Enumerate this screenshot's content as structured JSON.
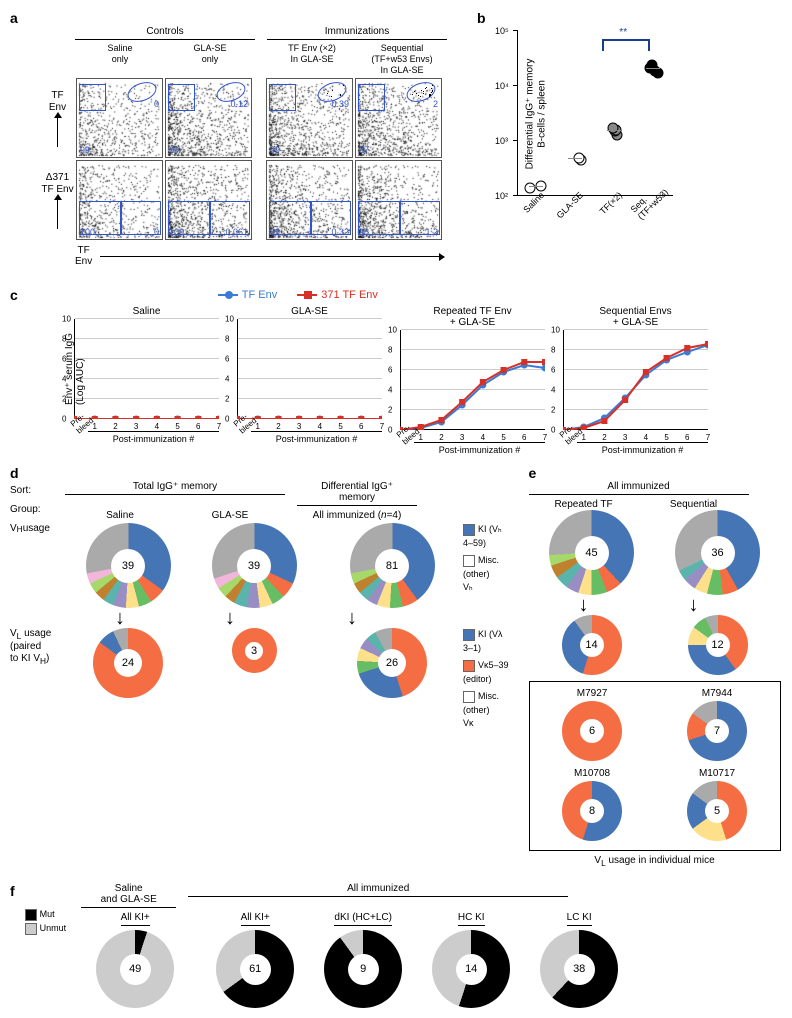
{
  "colors": {
    "blue": "#4575b4",
    "orange": "#f46d43",
    "gray": "#aaaaaa",
    "darkgray": "#777777",
    "white": "#ffffff",
    "line_blue": "#3a7bd5",
    "line_red": "#d73027",
    "sig_blue": "#1a3d8a",
    "green": "#66bd63",
    "yellow": "#fee08b",
    "teal": "#5ab4ac",
    "purple": "#998ec3",
    "lime": "#a6d96a",
    "pink": "#f1b6da",
    "brown": "#bf812d",
    "black": "#000000"
  },
  "panelA": {
    "controls_label": "Controls",
    "immunizations_label": "Immunizations",
    "columns": [
      {
        "top": "Saline",
        "bottom": "only"
      },
      {
        "top": "GLA-SE",
        "bottom": "only"
      },
      {
        "top": "TF Env (×2)",
        "bottom": "In GLA-SE"
      },
      {
        "top": "Sequential",
        "mid": "(TF+w53 Envs)",
        "bottom": "In GLA-SE"
      }
    ],
    "row_labels": [
      {
        "line1": "TF",
        "line2": "Env"
      },
      {
        "line1": "Δ371",
        "line2": "TF Env"
      }
    ],
    "x_label": "TF\nEnv",
    "plots_top": [
      {
        "left_pct": "99",
        "right_pct": "0",
        "density": 600
      },
      {
        "left_pct": "99",
        "right_pct": "0.12",
        "density": 900
      },
      {
        "left_pct": "99",
        "right_pct": "0.39",
        "density": 900,
        "oval_dots": 6
      },
      {
        "left_pct": "97",
        "right_pct": "2",
        "density": 900,
        "oval_dots": 20
      }
    ],
    "plots_bottom": [
      {
        "left_pct": "100",
        "right_pct": "0",
        "density": 600
      },
      {
        "left_pct": "100",
        "right_pct": "0.061",
        "density": 900
      },
      {
        "left_pct": "99",
        "right_pct": "0.32",
        "density": 900
      },
      {
        "left_pct": "98",
        "right_pct": "1.2",
        "density": 900
      }
    ],
    "x_ticks": [
      "0",
      "10²",
      "10³",
      "10⁴",
      "10⁵"
    ]
  },
  "panelB": {
    "y_label": "Differential IgG⁺ memory\nB-cells / spleen",
    "y_ticks": [
      "10²",
      "10³",
      "10⁴",
      "10⁵"
    ],
    "significance": "**",
    "groups": [
      {
        "label": "Saline",
        "color": "#ffffff",
        "points": [
          140,
          150
        ],
        "median": 145
      },
      {
        "label": "GLA-SE",
        "color": "#ffffff",
        "points": [
          450,
          500
        ],
        "median": 475
      },
      {
        "label": "TF(×2)",
        "color": "#888888",
        "points": [
          1300,
          1500,
          1600,
          1700
        ],
        "median": 1525
      },
      {
        "label": "Seq.\n(TF+w53)",
        "color": "#000000",
        "points": [
          17000,
          19000,
          21000,
          24000
        ],
        "median": 20000
      }
    ]
  },
  "panelC": {
    "legend": [
      {
        "label": "TF Env",
        "color": "#3a7bd5",
        "marker": "circle"
      },
      {
        "label": "371 TF Env",
        "color": "#d73027",
        "marker": "square"
      }
    ],
    "y_label": "Env⁺ serum IgG\n(Log AUC)",
    "y_ticks": [
      0,
      2,
      4,
      6,
      8,
      10
    ],
    "x_ticks": [
      "1",
      "2",
      "3",
      "4",
      "5",
      "6",
      "7"
    ],
    "x_label": "Post-immunization #",
    "prebleed": "Pre-\nbleed",
    "charts": [
      {
        "title": "Saline",
        "blue": [
          0,
          0,
          0,
          0,
          0,
          0,
          0,
          0
        ],
        "red": [
          0,
          0,
          0,
          0,
          0,
          0,
          0,
          0
        ]
      },
      {
        "title": "GLA-SE",
        "blue": [
          0,
          0,
          0,
          0,
          0,
          0,
          0,
          0
        ],
        "red": [
          0,
          0,
          0,
          0,
          0,
          0,
          0,
          0
        ]
      },
      {
        "title": "Repeated TF Env\n+ GLA-SE",
        "blue": [
          0,
          0.2,
          0.8,
          2.5,
          4.5,
          5.8,
          6.5,
          6.2
        ],
        "red": [
          0,
          0.3,
          1.0,
          2.8,
          4.8,
          6.0,
          6.8,
          6.8
        ]
      },
      {
        "title": "Sequential Envs\n+ GLA-SE",
        "blue": [
          0,
          0.3,
          1.2,
          3.2,
          5.5,
          7.0,
          7.8,
          8.5
        ],
        "red": [
          0,
          0.2,
          0.9,
          3.0,
          5.8,
          7.2,
          8.2,
          8.6
        ]
      }
    ]
  },
  "panelD": {
    "sort_label": "Sort:",
    "group_label": "Group:",
    "vh_label": "Vₕ usage",
    "vl_label": "V_L usage\n(paired\nto KI Vₕ)",
    "headers": {
      "total": "Total IgG⁺ memory",
      "diff": "Differential IgG⁺\nmemory"
    },
    "subheaders": [
      "Saline",
      "GLA-SE",
      "All immunized (n=4)"
    ],
    "legend_vh": [
      {
        "color": "#4575b4",
        "label": "KI (Vₕ\n4–59)"
      },
      {
        "color": "#ffffff",
        "label": "Misc.\n(other)\nVₕ"
      }
    ],
    "legend_vl": [
      {
        "color": "#4575b4",
        "label": "KI (Vλ\n3–1)"
      },
      {
        "color": "#f46d43",
        "label": "Vκ5–39\n(editor)"
      },
      {
        "color": "#ffffff",
        "label": "Misc.\n(other)\nVκ"
      }
    ],
    "vh_donuts": [
      {
        "n": 39,
        "slices": [
          {
            "c": "#4575b4",
            "p": 35
          },
          {
            "c": "#f46d43",
            "p": 6
          },
          {
            "c": "#66bd63",
            "p": 5
          },
          {
            "c": "#fee08b",
            "p": 5
          },
          {
            "c": "#998ec3",
            "p": 5
          },
          {
            "c": "#5ab4ac",
            "p": 4
          },
          {
            "c": "#bf812d",
            "p": 4
          },
          {
            "c": "#a6d96a",
            "p": 4
          },
          {
            "c": "#f1b6da",
            "p": 4
          },
          {
            "c": "#aaaaaa",
            "p": 28
          }
        ]
      },
      {
        "n": 39,
        "slices": [
          {
            "c": "#4575b4",
            "p": 32
          },
          {
            "c": "#f46d43",
            "p": 6
          },
          {
            "c": "#66bd63",
            "p": 5
          },
          {
            "c": "#fee08b",
            "p": 5
          },
          {
            "c": "#998ec3",
            "p": 5
          },
          {
            "c": "#5ab4ac",
            "p": 5
          },
          {
            "c": "#bf812d",
            "p": 4
          },
          {
            "c": "#a6d96a",
            "p": 4
          },
          {
            "c": "#f1b6da",
            "p": 4
          },
          {
            "c": "#aaaaaa",
            "p": 30
          }
        ]
      },
      {
        "n": 81,
        "slices": [
          {
            "c": "#4575b4",
            "p": 40
          },
          {
            "c": "#f46d43",
            "p": 6
          },
          {
            "c": "#66bd63",
            "p": 5
          },
          {
            "c": "#fee08b",
            "p": 5
          },
          {
            "c": "#998ec3",
            "p": 4
          },
          {
            "c": "#5ab4ac",
            "p": 4
          },
          {
            "c": "#bf812d",
            "p": 4
          },
          {
            "c": "#a6d96a",
            "p": 4
          },
          {
            "c": "#aaaaaa",
            "p": 28
          }
        ]
      }
    ],
    "vl_donuts": [
      {
        "n": 24,
        "slices": [
          {
            "c": "#f46d43",
            "p": 85
          },
          {
            "c": "#4575b4",
            "p": 8
          },
          {
            "c": "#aaaaaa",
            "p": 7
          }
        ]
      },
      {
        "n": 3,
        "slices": [
          {
            "c": "#f46d43",
            "p": 100
          }
        ]
      },
      {
        "n": 26,
        "slices": [
          {
            "c": "#f46d43",
            "p": 45
          },
          {
            "c": "#4575b4",
            "p": 25
          },
          {
            "c": "#66bd63",
            "p": 6
          },
          {
            "c": "#fee08b",
            "p": 6
          },
          {
            "c": "#998ec3",
            "p": 5
          },
          {
            "c": "#5ab4ac",
            "p": 5
          },
          {
            "c": "#aaaaaa",
            "p": 8
          }
        ]
      }
    ]
  },
  "panelE": {
    "header": "All immunized",
    "subheaders": [
      "Repeated TF",
      "Sequential"
    ],
    "vh_donuts": [
      {
        "n": 45,
        "slices": [
          {
            "c": "#4575b4",
            "p": 38
          },
          {
            "c": "#f46d43",
            "p": 6
          },
          {
            "c": "#66bd63",
            "p": 6
          },
          {
            "c": "#fee08b",
            "p": 5
          },
          {
            "c": "#998ec3",
            "p": 5
          },
          {
            "c": "#5ab4ac",
            "p": 5
          },
          {
            "c": "#bf812d",
            "p": 5
          },
          {
            "c": "#a6d96a",
            "p": 4
          },
          {
            "c": "#aaaaaa",
            "p": 26
          }
        ]
      },
      {
        "n": 36,
        "slices": [
          {
            "c": "#4575b4",
            "p": 42
          },
          {
            "c": "#f46d43",
            "p": 6
          },
          {
            "c": "#66bd63",
            "p": 6
          },
          {
            "c": "#fee08b",
            "p": 5
          },
          {
            "c": "#998ec3",
            "p": 5
          },
          {
            "c": "#5ab4ac",
            "p": 4
          },
          {
            "c": "#aaaaaa",
            "p": 32
          }
        ]
      }
    ],
    "vl_donuts": [
      {
        "n": 14,
        "slices": [
          {
            "c": "#f46d43",
            "p": 55
          },
          {
            "c": "#4575b4",
            "p": 35
          },
          {
            "c": "#aaaaaa",
            "p": 10
          }
        ]
      },
      {
        "n": 12,
        "slices": [
          {
            "c": "#f46d43",
            "p": 40
          },
          {
            "c": "#4575b4",
            "p": 35
          },
          {
            "c": "#fee08b",
            "p": 10
          },
          {
            "c": "#66bd63",
            "p": 8
          },
          {
            "c": "#aaaaaa",
            "p": 7
          }
        ]
      }
    ],
    "mice_label": "V_L usage in individual mice",
    "mice": [
      {
        "id": "M7927",
        "n": 6,
        "slices": [
          {
            "c": "#f46d43",
            "p": 100
          }
        ]
      },
      {
        "id": "M7944",
        "n": 7,
        "slices": [
          {
            "c": "#4575b4",
            "p": 70
          },
          {
            "c": "#f46d43",
            "p": 15
          },
          {
            "c": "#aaaaaa",
            "p": 15
          }
        ]
      },
      {
        "id": "M10708",
        "n": 8,
        "slices": [
          {
            "c": "#4575b4",
            "p": 55
          },
          {
            "c": "#f46d43",
            "p": 45
          }
        ]
      },
      {
        "id": "M10717",
        "n": 5,
        "slices": [
          {
            "c": "#f46d43",
            "p": 45
          },
          {
            "c": "#fee08b",
            "p": 20
          },
          {
            "c": "#4575b4",
            "p": 20
          },
          {
            "c": "#aaaaaa",
            "p": 15
          }
        ]
      }
    ]
  },
  "panelF": {
    "legend": [
      {
        "color": "#000000",
        "label": "Mut"
      },
      {
        "color": "#cccccc",
        "label": "Unmut"
      }
    ],
    "headers": {
      "left": "Saline\nand GLA-SE",
      "right": "All immunized"
    },
    "donuts": [
      {
        "title": "All KI+",
        "n": 49,
        "slices": [
          {
            "c": "#000000",
            "p": 5
          },
          {
            "c": "#cccccc",
            "p": 95
          }
        ]
      },
      {
        "title": "All KI+",
        "n": 61,
        "slices": [
          {
            "c": "#000000",
            "p": 65
          },
          {
            "c": "#cccccc",
            "p": 35
          }
        ]
      },
      {
        "title": "dKI (HC+LC)",
        "n": 9,
        "slices": [
          {
            "c": "#000000",
            "p": 90
          },
          {
            "c": "#cccccc",
            "p": 10
          }
        ]
      },
      {
        "title": "HC KI",
        "n": 14,
        "slices": [
          {
            "c": "#000000",
            "p": 55
          },
          {
            "c": "#cccccc",
            "p": 45
          }
        ]
      },
      {
        "title": "LC KI",
        "n": 38,
        "slices": [
          {
            "c": "#000000",
            "p": 62
          },
          {
            "c": "#cccccc",
            "p": 38
          }
        ]
      }
    ]
  }
}
